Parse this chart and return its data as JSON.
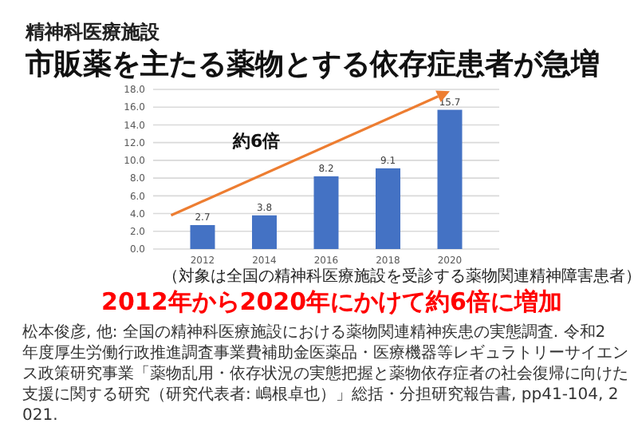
{
  "chart_data": {
    "type": "bar",
    "subtitle": "精神科医療施設",
    "title": "市販薬を主たる薬物とする依存症患者が急増",
    "categories": [
      "2012",
      "2014",
      "2016",
      "2018",
      "2020"
    ],
    "values": [
      2.7,
      3.8,
      8.2,
      9.1,
      15.7
    ],
    "color": "#4472c4",
    "data_labels": true,
    "ylim": [
      0,
      18
    ],
    "yticks": [
      {
        "value": 0,
        "label": "0.0"
      },
      {
        "value": 2,
        "label": "2.0"
      },
      {
        "value": 4,
        "label": "4.0"
      },
      {
        "value": 6,
        "label": "6.0"
      },
      {
        "value": 8,
        "label": "8.0"
      },
      {
        "value": 10,
        "label": "10.0"
      },
      {
        "value": 12,
        "label": "12.0"
      },
      {
        "value": 14,
        "label": "14.0"
      },
      {
        "value": 16,
        "label": "16.0"
      },
      {
        "value": 18,
        "label": "18.0"
      }
    ],
    "grid": "y",
    "annotations": [
      "約6倍",
      "（対象は全国の精神科医療施設を受診する薬物関連精神障害患者）",
      "2012年から2020年にかけて約6倍に増加",
      "松本俊彦, 他: 全国の精神科医療施設における薬物関連精神疾患の実態調査. 令和2年度厚生労働行政推進調査事業費補助金医薬品・医療機器等レギュラトリーサイエンス政策研究事業「薬物乱用・依存状況の実態把握と薬物依存症者の社会復帰に向けた支援に関する研究（研究代表者: 嶋根卓也）」総括・分担研究報告書, pp41-104, 2021."
    ]
  }
}
